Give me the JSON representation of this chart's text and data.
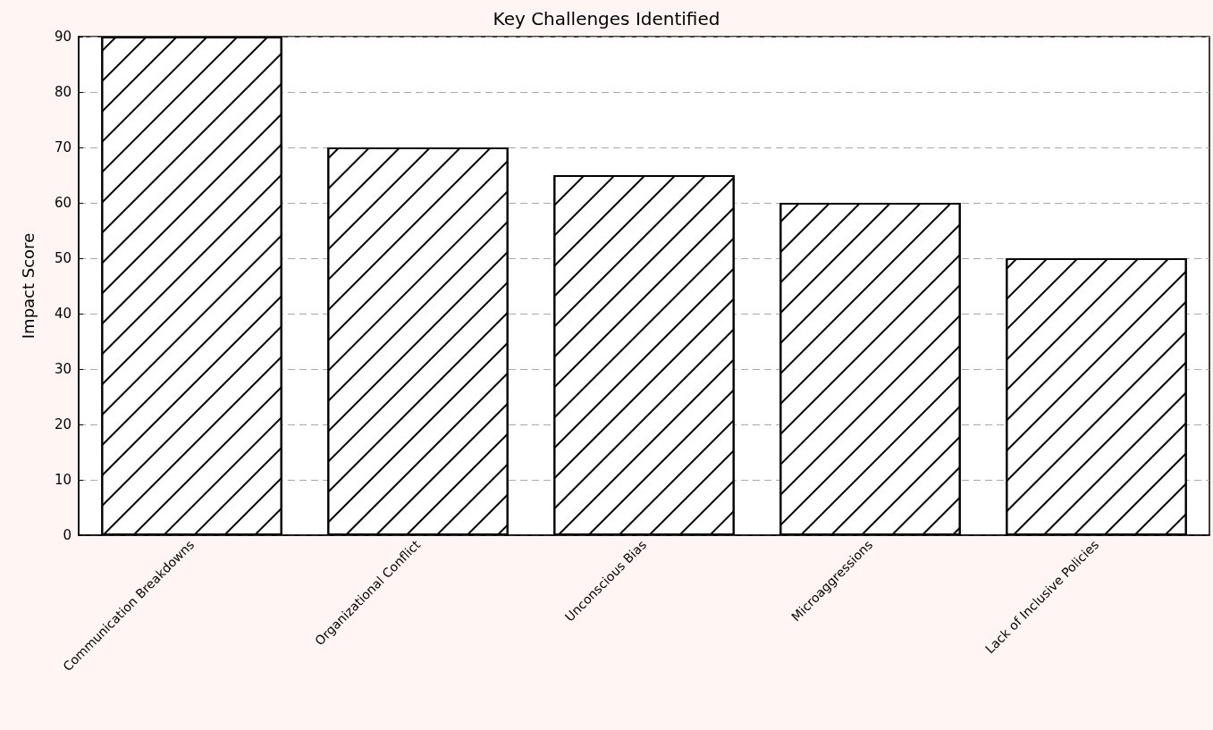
{
  "chart_data": {
    "type": "bar",
    "title": "Key Challenges Identified",
    "ylabel": "Impact Score",
    "categories": [
      "Communication Breakdowns",
      "Organizational Conflict",
      "Unconscious Bias",
      "Microaggressions",
      "Lack of Inclusive Policies"
    ],
    "values": [
      90,
      70,
      65,
      60,
      50
    ],
    "color": "#ffffff",
    "ylim": [
      0,
      90
    ],
    "yticks": [
      0,
      10,
      20,
      30,
      40,
      50,
      60,
      70,
      80,
      90
    ],
    "grid": "y"
  }
}
